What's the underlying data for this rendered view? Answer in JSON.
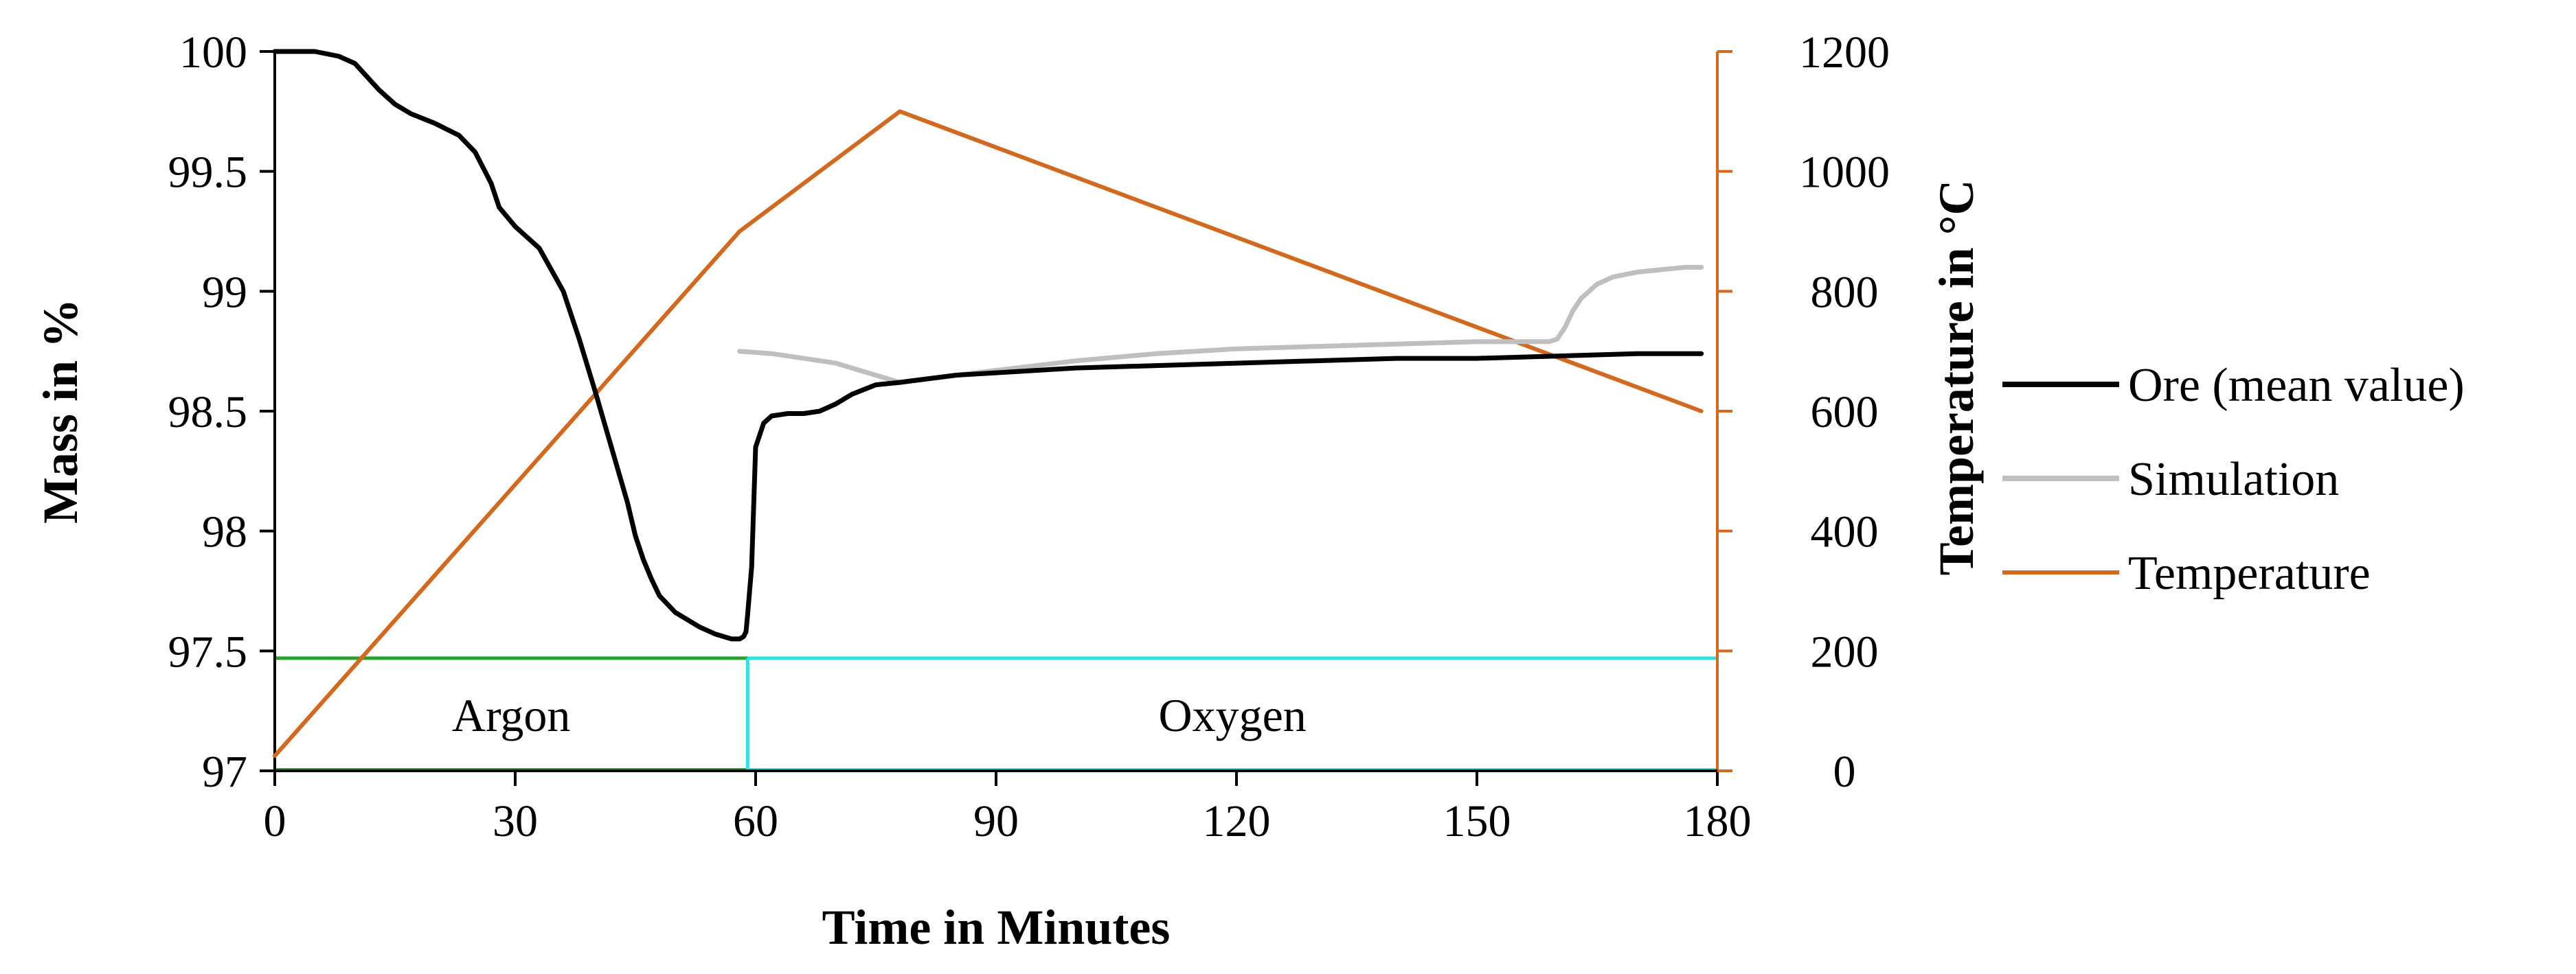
{
  "chart_data": {
    "type": "line",
    "title": "",
    "xlabel": "Time in Minutes",
    "ylabel_left": "Mass in %",
    "ylabel_right": "Temperature in °C",
    "xlim": [
      0,
      180
    ],
    "ylim_left": [
      97,
      100
    ],
    "ylim_right": [
      0,
      1200
    ],
    "x_ticks": [
      "0",
      "30",
      "60",
      "90",
      "120",
      "150",
      "180"
    ],
    "x_tick_values": [
      0,
      30,
      60,
      90,
      120,
      150,
      180
    ],
    "y_left_ticks": [
      "97",
      "97.5",
      "98",
      "98.5",
      "99",
      "99.5",
      "100"
    ],
    "y_left_tick_values": [
      97,
      97.5,
      98,
      98.5,
      99,
      99.5,
      100
    ],
    "y_right_ticks": [
      "0",
      "200",
      "400",
      "600",
      "800",
      "1000",
      "1200"
    ],
    "y_right_tick_values": [
      0,
      200,
      400,
      600,
      800,
      1000,
      1200
    ],
    "grid": false,
    "legend_position": "right",
    "series": [
      {
        "name": "Ore (mean value)",
        "axis": "left",
        "color": "#000000",
        "x": [
          0,
          5,
          8,
          10,
          13,
          15,
          17,
          20,
          23,
          25,
          27,
          28,
          30,
          33,
          36,
          38,
          40,
          42,
          44,
          45,
          46,
          47,
          48,
          50,
          53,
          55,
          57,
          58,
          58.5,
          58.8,
          59,
          59.5,
          60,
          61,
          62,
          64,
          66,
          68,
          70,
          72,
          75,
          78,
          85,
          90,
          100,
          110,
          120,
          130,
          140,
          150,
          160,
          170,
          175,
          178
        ],
        "y": [
          100,
          100,
          99.98,
          99.95,
          99.84,
          99.78,
          99.74,
          99.7,
          99.65,
          99.58,
          99.45,
          99.35,
          99.27,
          99.18,
          99.0,
          98.8,
          98.58,
          98.35,
          98.12,
          97.98,
          97.88,
          97.8,
          97.73,
          97.66,
          97.6,
          97.57,
          97.55,
          97.55,
          97.56,
          97.58,
          97.65,
          97.85,
          98.35,
          98.45,
          98.48,
          98.49,
          98.49,
          98.5,
          98.53,
          98.57,
          98.61,
          98.62,
          98.65,
          98.66,
          98.68,
          98.69,
          98.7,
          98.71,
          98.72,
          98.72,
          98.73,
          98.74,
          98.74,
          98.74
        ]
      },
      {
        "name": "Simulation",
        "axis": "left",
        "color": "#bfbfbf",
        "x": [
          58,
          62,
          66,
          70,
          74,
          78,
          80,
          85,
          90,
          100,
          110,
          120,
          130,
          140,
          150,
          155,
          158,
          159,
          160,
          161,
          162,
          163,
          164,
          165,
          167,
          170,
          173,
          176,
          178
        ],
        "y": [
          98.75,
          98.74,
          98.72,
          98.7,
          98.66,
          98.62,
          98.63,
          98.65,
          98.67,
          98.71,
          98.74,
          98.76,
          98.77,
          98.78,
          98.79,
          98.79,
          98.79,
          98.79,
          98.8,
          98.85,
          98.92,
          98.97,
          99.0,
          99.03,
          99.06,
          99.08,
          99.09,
          99.1,
          99.1
        ]
      },
      {
        "name": "Temperature",
        "axis": "right",
        "color": "#d2691e",
        "x": [
          0,
          58,
          78,
          178
        ],
        "y": [
          25,
          900,
          1100,
          600
        ]
      }
    ],
    "atmosphere": [
      {
        "name": "Argon",
        "start": 0,
        "end": 59,
        "color": "#2ca02c"
      },
      {
        "name": "Oxygen",
        "start": 59,
        "end": 180,
        "color": "#33e0e0"
      }
    ]
  }
}
